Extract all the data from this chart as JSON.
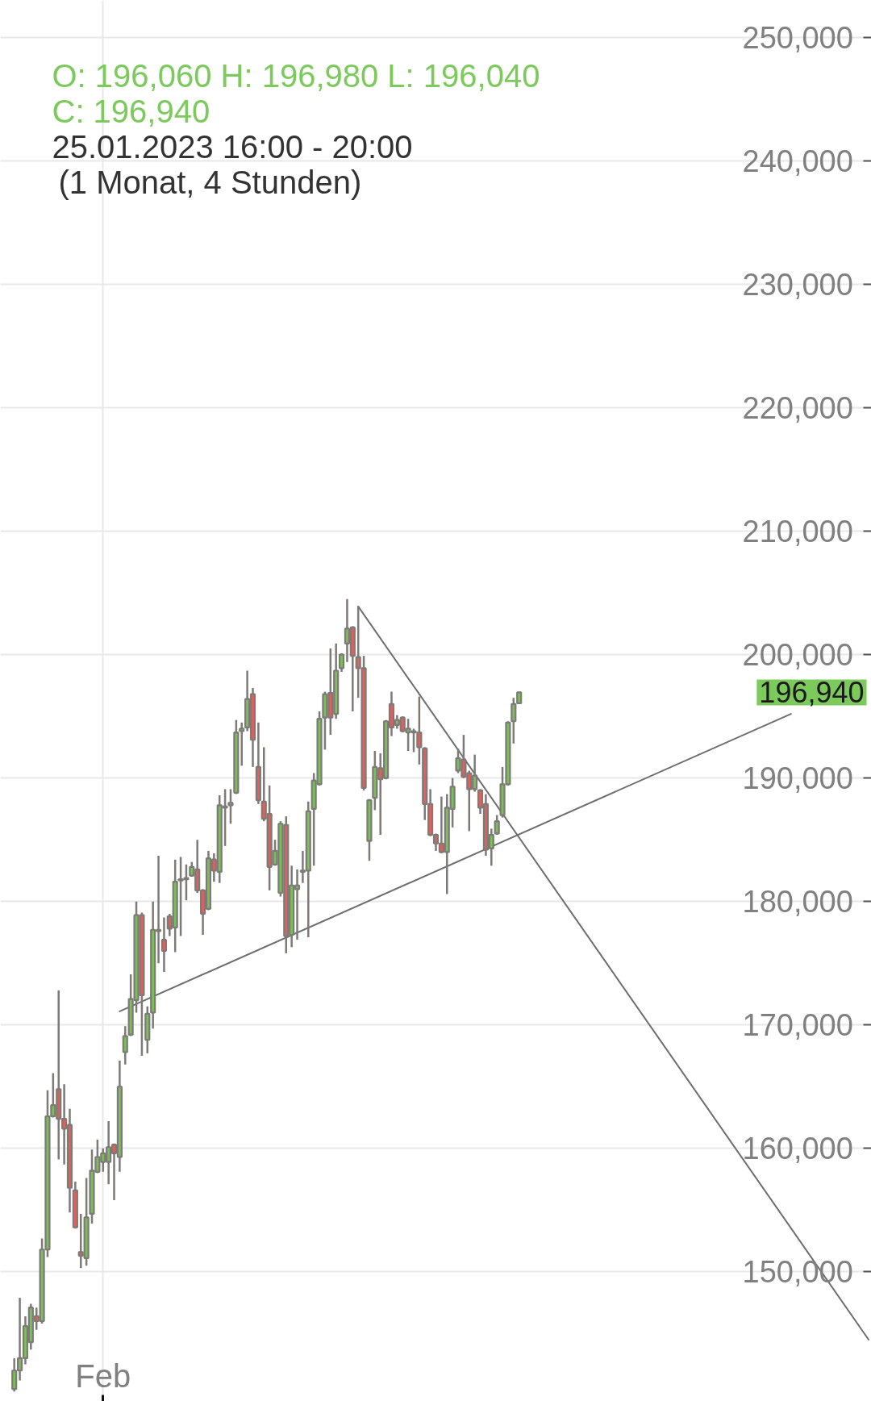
{
  "chart_data": {
    "type": "candlestick",
    "title": "O: 196,060 H: 196,980 L: 196,040 C: 196,940",
    "subtitle": "25.01.2023 16:00 - 20:00 (1 Monat, 4 Stunden)",
    "annotations": [
      "196,940"
    ],
    "categories": [
      null,
      null,
      null,
      null,
      null,
      null,
      null,
      null,
      null,
      null,
      null,
      null,
      null,
      null,
      null,
      null,
      "Feb",
      null,
      null,
      null,
      null,
      null,
      null,
      null,
      null,
      null,
      null,
      null,
      null,
      null,
      null,
      null,
      null,
      null,
      null,
      null,
      null,
      null,
      null,
      null,
      null,
      null,
      null,
      null,
      null,
      null,
      null,
      null,
      null,
      null,
      null,
      null,
      null,
      null,
      null,
      null,
      null,
      null,
      null,
      null,
      null,
      null,
      null,
      null,
      null,
      null,
      null,
      null,
      null,
      null,
      null,
      null,
      null,
      null,
      null,
      null,
      null,
      null,
      null,
      null,
      null,
      null,
      null,
      null,
      null,
      null,
      null,
      null,
      null,
      null,
      null,
      null,
      null,
      null,
      null,
      null,
      null,
      null,
      null,
      null,
      null,
      null,
      null,
      null,
      null,
      null,
      null,
      null,
      null,
      null,
      null,
      null,
      null,
      null,
      null,
      null,
      null,
      null,
      null,
      null,
      null,
      null,
      null,
      null,
      null,
      null,
      null,
      null,
      null,
      null,
      null,
      null,
      null,
      null,
      null,
      null,
      null,
      null,
      null,
      null,
      null,
      null,
      null,
      null,
      null,
      null,
      null,
      null,
      null,
      null,
      null,
      null,
      null,
      null,
      null
    ],
    "ohlc": [
      [
        140500,
        143000,
        140300,
        142000
      ],
      [
        142000,
        147900,
        141200,
        143000
      ],
      [
        143000,
        146400,
        142500,
        145600
      ],
      [
        144300,
        147400,
        143700,
        147100
      ],
      [
        146400,
        147100,
        145300,
        146000
      ],
      [
        146000,
        152700,
        145800,
        151800
      ],
      [
        151800,
        164700,
        151200,
        162600
      ],
      [
        162600,
        166100,
        162500,
        163500
      ],
      [
        164800,
        172800,
        159100,
        162400
      ],
      [
        162400,
        165200,
        158700,
        161600
      ],
      [
        161900,
        163200,
        154800,
        156800
      ],
      [
        156600,
        157300,
        153500,
        153600
      ],
      [
        151600,
        154700,
        150300,
        151300
      ],
      [
        151100,
        157600,
        150500,
        154400
      ],
      [
        154700,
        159900,
        153900,
        158200
      ],
      [
        158100,
        160700,
        158000,
        159300
      ],
      [
        158900,
        160000,
        158100,
        159600
      ],
      [
        158900,
        162200,
        157100,
        160100
      ],
      [
        160300,
        160400,
        155800,
        159600
      ],
      [
        159300,
        167100,
        158100,
        165000
      ],
      [
        167800,
        169900,
        166800,
        169100
      ],
      [
        169200,
        174100,
        169100,
        172100
      ],
      [
        172000,
        180000,
        171000,
        178900
      ],
      [
        178900,
        179100,
        167500,
        172400
      ],
      [
        168800,
        171500,
        167700,
        170900
      ],
      [
        171000,
        180000,
        169700,
        177700
      ],
      [
        177600,
        183700,
        175000,
        177700
      ],
      [
        176900,
        178700,
        174300,
        176000
      ],
      [
        178800,
        179000,
        177200,
        177800
      ],
      [
        177900,
        183400,
        175900,
        181600
      ],
      [
        181700,
        183600,
        177200,
        181800
      ],
      [
        181800,
        183000,
        180100,
        181900
      ],
      [
        182100,
        183200,
        182000,
        182800
      ],
      [
        182600,
        185000,
        180700,
        180900
      ],
      [
        180900,
        181000,
        177300,
        179000
      ],
      [
        179400,
        184100,
        179300,
        183500
      ],
      [
        183400,
        183900,
        181600,
        182500
      ],
      [
        182400,
        188600,
        181500,
        187800
      ],
      [
        187600,
        189100,
        184500,
        187700
      ],
      [
        187800,
        189100,
        186300,
        188000
      ],
      [
        188800,
        194700,
        188700,
        193700
      ],
      [
        193800,
        194500,
        191000,
        194000
      ],
      [
        194100,
        198700,
        193800,
        196400
      ],
      [
        196800,
        197300,
        190900,
        193100
      ],
      [
        190900,
        194500,
        187900,
        188200
      ],
      [
        188100,
        192500,
        186500,
        186700
      ],
      [
        187100,
        189400,
        180900,
        182800
      ],
      [
        183000,
        185000,
        182900,
        184100
      ],
      [
        180700,
        186500,
        180400,
        186300
      ],
      [
        186200,
        186900,
        175800,
        177200
      ],
      [
        177300,
        182900,
        176300,
        181300
      ],
      [
        181000,
        182600,
        176900,
        181300
      ],
      [
        182400,
        184100,
        181500,
        182500
      ],
      [
        182500,
        188100,
        177100,
        187300
      ],
      [
        187500,
        190400,
        182900,
        189800
      ],
      [
        189500,
        195400,
        189400,
        194800
      ],
      [
        194900,
        197000,
        192300,
        196800
      ],
      [
        196900,
        200500,
        193500,
        194900
      ],
      [
        195200,
        200900,
        194800,
        198700
      ],
      [
        198900,
        200100,
        198600,
        200000
      ],
      [
        200900,
        204500,
        199400,
        202100
      ],
      [
        202200,
        202300,
        195400,
        199900
      ],
      [
        199800,
        203900,
        196500,
        198900
      ],
      [
        198900,
        199900,
        189000,
        189200
      ],
      [
        184900,
        188300,
        183300,
        188200
      ],
      [
        188400,
        192200,
        187400,
        190900
      ],
      [
        190800,
        192000,
        185400,
        189900
      ],
      [
        190000,
        194700,
        189900,
        194600
      ],
      [
        196000,
        197000,
        193400,
        194100
      ],
      [
        194300,
        195100,
        194000,
        194700
      ],
      [
        194900,
        195000,
        193700,
        193800
      ],
      [
        193700,
        194800,
        192200,
        194000
      ],
      [
        193800,
        194000,
        192100,
        193700
      ],
      [
        193700,
        196600,
        191100,
        192500
      ],
      [
        192400,
        192500,
        186600,
        187900
      ],
      [
        187900,
        189100,
        185300,
        185400
      ],
      [
        185400,
        185500,
        184100,
        184700
      ],
      [
        184700,
        188500,
        183900,
        184000
      ],
      [
        184000,
        188700,
        180600,
        187600
      ],
      [
        187500,
        190000,
        186000,
        189300
      ],
      [
        190600,
        192400,
        190400,
        191600
      ],
      [
        191500,
        193500,
        190000,
        190100
      ],
      [
        190400,
        190600,
        185700,
        189100
      ],
      [
        189100,
        191900,
        188900,
        190200
      ],
      [
        189000,
        189100,
        187100,
        187600
      ],
      [
        187900,
        188700,
        183700,
        184200
      ],
      [
        184300,
        185900,
        182900,
        185400
      ],
      [
        185500,
        187000,
        185400,
        186500
      ],
      [
        187000,
        190900,
        186800,
        189500
      ],
      [
        189500,
        194600,
        189400,
        194500
      ],
      [
        194600,
        196500,
        192800,
        196000
      ],
      [
        196060,
        196980,
        196040,
        196940
      ],
      null,
      null,
      null,
      null,
      null,
      null,
      null,
      null,
      null,
      null,
      null,
      null,
      null,
      null,
      null,
      null,
      null,
      null,
      null,
      null,
      null,
      null,
      null,
      null,
      null,
      null,
      null,
      null,
      null,
      null,
      null,
      null,
      null,
      null,
      null,
      null,
      null,
      null,
      null,
      null,
      null,
      null,
      null,
      null,
      null,
      null,
      null,
      null,
      null,
      null,
      null,
      null,
      null,
      null,
      null,
      null,
      null,
      null,
      null,
      null,
      null,
      null,
      null
    ],
    "colors": [
      "#79c056",
      "#79c056",
      "#79c056",
      "#79c056",
      "#e0605c",
      "#79c056",
      "#79c056",
      "#79c056",
      "#e0605c",
      "#e0605c",
      "#e0605c",
      "#e0605c",
      "#e0605c",
      "#79c056",
      "#79c056",
      "#79c056",
      "#79c056",
      "#79c056",
      "#e0605c",
      "#79c056",
      "#79c056",
      "#79c056",
      "#79c056",
      "#e0605c",
      "#79c056",
      "#79c056",
      "#79c056",
      "#e0605c",
      "#e0605c",
      "#79c056",
      "#79c056",
      "#79c056",
      "#79c056",
      "#e0605c",
      "#e0605c",
      "#79c056",
      "#e0605c",
      "#79c056",
      "#79c056",
      "#79c056",
      "#79c056",
      "#79c056",
      "#79c056",
      "#e0605c",
      "#e0605c",
      "#e0605c",
      "#e0605c",
      "#79c056",
      "#79c056",
      "#e0605c",
      "#79c056",
      "#79c056",
      "#79c056",
      "#79c056",
      "#79c056",
      "#79c056",
      "#79c056",
      "#e0605c",
      "#79c056",
      "#79c056",
      "#79c056",
      "#e0605c",
      "#e0605c",
      "#e0605c",
      "#79c056",
      "#79c056",
      "#e0605c",
      "#79c056",
      "#e0605c",
      "#79c056",
      "#e0605c",
      "#79c056",
      "#e0605c",
      "#e0605c",
      "#e0605c",
      "#e0605c",
      "#e0605c",
      "#e0605c",
      "#79c056",
      "#79c056",
      "#79c056",
      "#e0605c",
      "#e0605c",
      "#79c056",
      "#e0605c",
      "#e0605c",
      "#79c056",
      "#79c056",
      "#79c056",
      "#79c056",
      "#79c056",
      "#79c056",
      null,
      null,
      null,
      null,
      null,
      null,
      null,
      null,
      null,
      null,
      null,
      null,
      null,
      null,
      null,
      null,
      null,
      null,
      null,
      null,
      null,
      null,
      null,
      null,
      null,
      null,
      null,
      null,
      null,
      null,
      null,
      null,
      null,
      null,
      null,
      null,
      null,
      null,
      null,
      null,
      null,
      null,
      null,
      null,
      null,
      null,
      null,
      null,
      null,
      null,
      null,
      null,
      null,
      null,
      null,
      null,
      null,
      null,
      null,
      null,
      null,
      null,
      null
    ],
    "series": [
      {
        "type": "line",
        "color": "#6e6e6e",
        "values": [
          null,
          null,
          null,
          null,
          null,
          null,
          null,
          null,
          null,
          null,
          null,
          null,
          null,
          null,
          null,
          null,
          null,
          null,
          null,
          171100,
          null,
          null,
          null,
          null,
          null,
          null,
          null,
          null,
          null,
          null,
          null,
          null,
          null,
          null,
          null,
          null,
          null,
          null,
          null,
          null,
          null,
          null,
          null,
          null,
          null,
          null,
          null,
          null,
          null,
          null,
          null,
          null,
          null,
          null,
          null,
          null,
          null,
          null,
          null,
          null,
          null,
          null,
          null,
          null,
          null,
          null,
          null,
          null,
          null,
          null,
          null,
          null,
          null,
          null,
          null,
          null,
          null,
          null,
          null,
          null,
          null,
          null,
          null,
          null,
          null,
          null,
          null,
          null,
          null,
          null,
          null,
          null,
          null,
          null,
          null,
          null,
          null,
          null,
          null,
          null,
          null,
          null,
          null,
          null,
          null,
          null,
          null,
          null,
          null,
          null,
          null,
          null,
          null,
          null,
          null,
          null,
          null,
          null,
          null,
          null,
          null,
          null,
          null,
          null,
          null,
          null,
          null,
          null,
          null,
          null,
          null,
          null,
          null,
          null,
          null,
          null,
          null,
          null,
          null,
          null,
          195200,
          null,
          null,
          null,
          null,
          null,
          null,
          null,
          null,
          null,
          null,
          null,
          null,
          null,
          null
        ]
      },
      {
        "type": "line",
        "color": "#6e6e6e",
        "values": [
          null,
          null,
          null,
          null,
          null,
          null,
          null,
          null,
          null,
          null,
          null,
          null,
          null,
          null,
          null,
          null,
          null,
          null,
          null,
          null,
          null,
          null,
          null,
          null,
          null,
          null,
          null,
          null,
          null,
          null,
          null,
          null,
          null,
          null,
          null,
          null,
          null,
          null,
          null,
          null,
          null,
          null,
          null,
          null,
          null,
          null,
          null,
          null,
          null,
          null,
          null,
          null,
          null,
          null,
          null,
          null,
          null,
          null,
          null,
          null,
          null,
          null,
          203900,
          null,
          null,
          null,
          null,
          null,
          null,
          null,
          null,
          null,
          null,
          null,
          null,
          null,
          null,
          null,
          null,
          null,
          null,
          null,
          null,
          null,
          null,
          null,
          null,
          null,
          null,
          null,
          null,
          null,
          null,
          null,
          null,
          null,
          null,
          null,
          null,
          null,
          null,
          null,
          null,
          null,
          null,
          null,
          null,
          null,
          null,
          null,
          null,
          null,
          null,
          null,
          null,
          null,
          null,
          null,
          null,
          null,
          null,
          null,
          null,
          null,
          null,
          null,
          null,
          null,
          null,
          null,
          null,
          null,
          null,
          null,
          null,
          null,
          null,
          null,
          null,
          null,
          null,
          null,
          null,
          null,
          null,
          null,
          null,
          null,
          null,
          null,
          null,
          null,
          null,
          null,
          144500
        ]
      }
    ],
    "ylim": [
      139500,
      253000
    ],
    "yticks": [
      {
        "value": 150000,
        "label": "150,000"
      },
      {
        "value": 160000,
        "label": "160,000"
      },
      {
        "value": 170000,
        "label": "170,000"
      },
      {
        "value": 180000,
        "label": "180,000"
      },
      {
        "value": 190000,
        "label": "190,000"
      },
      {
        "value": 200000,
        "label": "200,000"
      },
      {
        "value": 210000,
        "label": "210,000"
      },
      {
        "value": 220000,
        "label": "220,000"
      },
      {
        "value": 230000,
        "label": "230,000"
      },
      {
        "value": 240000,
        "label": "240,000"
      },
      {
        "value": 250000,
        "label": "250,000"
      }
    ],
    "grid": true
  }
}
